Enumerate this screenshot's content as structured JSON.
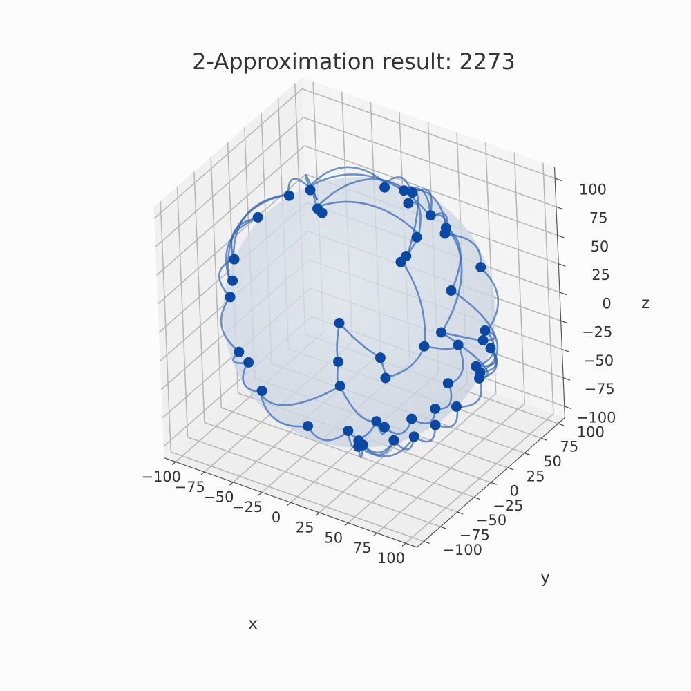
{
  "chart_data": {
    "type": "scatter",
    "title": "2-Approximation result: 2273",
    "xlabel": "x",
    "ylabel": "y",
    "zlabel": "z",
    "xlim": [
      -110,
      110
    ],
    "ylim": [
      -110,
      110
    ],
    "zlim": [
      -110,
      110
    ],
    "ticks": [
      -100,
      -75,
      -50,
      -25,
      0,
      25,
      50,
      75,
      100
    ],
    "tick_labels": [
      "−100",
      "−75",
      "−50",
      "−25",
      "0",
      "25",
      "50",
      "75",
      "100"
    ],
    "grid": true,
    "sphere_radius": 100,
    "colors": {
      "points": "#0a48a6",
      "edges": "#2a62b8",
      "sphere": "#c9d3e0",
      "pane": "#f1f1f1",
      "background": "#fcfcfc"
    },
    "points": [
      {
        "x": 45,
        "y": 35,
        "z": 83
      },
      {
        "x": 5,
        "y": 75,
        "z": 68
      },
      {
        "x": 55,
        "y": 40,
        "z": 73
      },
      {
        "x": 90,
        "y": -30,
        "z": 30
      },
      {
        "x": 60,
        "y": 30,
        "z": 75
      },
      {
        "x": 75,
        "y": 55,
        "z": 38
      },
      {
        "x": -70,
        "y": 20,
        "z": 67
      },
      {
        "x": -45,
        "y": 10,
        "z": 86
      },
      {
        "x": -10,
        "y": 60,
        "z": 75
      },
      {
        "x": -5,
        "y": 85,
        "z": 50
      },
      {
        "x": 10,
        "y": 55,
        "z": 82
      },
      {
        "x": 85,
        "y": -5,
        "z": 52
      },
      {
        "x": 95,
        "y": 25,
        "z": 5
      },
      {
        "x": 98,
        "y": 5,
        "z": -15
      },
      {
        "x": 99,
        "y": 15,
        "z": 3
      },
      {
        "x": 90,
        "y": 40,
        "z": -20
      },
      {
        "x": -80,
        "y": -50,
        "z": 25
      },
      {
        "x": -90,
        "y": -30,
        "z": 30
      },
      {
        "x": -60,
        "y": 50,
        "z": 40
      },
      {
        "x": -95,
        "y": -30,
        "z": -5
      },
      {
        "x": -80,
        "y": -45,
        "z": -40
      },
      {
        "x": -75,
        "y": -40,
        "z": -50
      },
      {
        "x": -55,
        "y": -55,
        "z": -60
      },
      {
        "x": -55,
        "y": 60,
        "z": -60
      },
      {
        "x": -45,
        "y": 40,
        "z": -80
      },
      {
        "x": -20,
        "y": 60,
        "z": -78
      },
      {
        "x": -35,
        "y": 25,
        "z": -90
      },
      {
        "x": -10,
        "y": 50,
        "z": -87
      },
      {
        "x": 5,
        "y": 10,
        "z": -99
      },
      {
        "x": -5,
        "y": -15,
        "z": -98
      },
      {
        "x": 15,
        "y": 5,
        "z": -98
      },
      {
        "x": 30,
        "y": 20,
        "z": -93
      },
      {
        "x": 35,
        "y": -15,
        "z": -92
      },
      {
        "x": 50,
        "y": -10,
        "z": -86
      },
      {
        "x": 45,
        "y": 30,
        "z": -84
      },
      {
        "x": 60,
        "y": 5,
        "z": -80
      },
      {
        "x": 70,
        "y": 20,
        "z": -68
      },
      {
        "x": 80,
        "y": 40,
        "z": -45
      },
      {
        "x": 85,
        "y": 30,
        "z": -43
      },
      {
        "x": 40,
        "y": 75,
        "z": -53
      },
      {
        "x": 10,
        "y": 75,
        "z": -65
      },
      {
        "x": 45,
        "y": 50,
        "z": -72
      },
      {
        "x": -5,
        "y": 95,
        "z": 15
      },
      {
        "x": -20,
        "y": 95,
        "z": -12
      },
      {
        "x": -15,
        "y": 95,
        "z": -5
      },
      {
        "x": -70,
        "y": 60,
        "z": 35
      },
      {
        "x": -80,
        "y": -10,
        "z": 60
      },
      {
        "x": 10,
        "y": -25,
        "z": -96
      },
      {
        "x": 20,
        "y": -35,
        "z": -91
      },
      {
        "x": -25,
        "y": -40,
        "z": -88
      },
      {
        "x": 25,
        "y": -50,
        "z": -83
      }
    ],
    "edges": [
      [
        0,
        4
      ],
      [
        0,
        7
      ],
      [
        0,
        10
      ],
      [
        0,
        1
      ],
      [
        1,
        8
      ],
      [
        1,
        9
      ],
      [
        0,
        2
      ],
      [
        2,
        11
      ],
      [
        2,
        3
      ],
      [
        4,
        5
      ],
      [
        7,
        6
      ],
      [
        7,
        18
      ],
      [
        6,
        16
      ],
      [
        6,
        17
      ],
      [
        17,
        19
      ],
      [
        19,
        20
      ],
      [
        20,
        21
      ],
      [
        21,
        22
      ],
      [
        22,
        49
      ],
      [
        7,
        8
      ],
      [
        10,
        2
      ],
      [
        3,
        14
      ],
      [
        14,
        12
      ],
      [
        12,
        13
      ],
      [
        13,
        15
      ],
      [
        15,
        37
      ],
      [
        15,
        38
      ],
      [
        38,
        36
      ],
      [
        36,
        35
      ],
      [
        35,
        33
      ],
      [
        33,
        32
      ],
      [
        32,
        48
      ],
      [
        48,
        50
      ],
      [
        47,
        29
      ],
      [
        29,
        28
      ],
      [
        28,
        30
      ],
      [
        30,
        31
      ],
      [
        31,
        34
      ],
      [
        34,
        41
      ],
      [
        41,
        39
      ],
      [
        39,
        40
      ],
      [
        40,
        27
      ],
      [
        27,
        25
      ],
      [
        25,
        23
      ],
      [
        23,
        24
      ],
      [
        24,
        26
      ],
      [
        26,
        28
      ],
      [
        9,
        42
      ],
      [
        42,
        44
      ],
      [
        44,
        43
      ],
      [
        43,
        40
      ],
      [
        18,
        45
      ],
      [
        45,
        42
      ],
      [
        16,
        46
      ],
      [
        46,
        17
      ],
      [
        29,
        49
      ],
      [
        47,
        32
      ],
      [
        5,
        12
      ],
      [
        11,
        37
      ],
      [
        10,
        44
      ],
      [
        1,
        45
      ],
      [
        22,
        26
      ],
      [
        50,
        33
      ],
      [
        3,
        38
      ]
    ]
  }
}
